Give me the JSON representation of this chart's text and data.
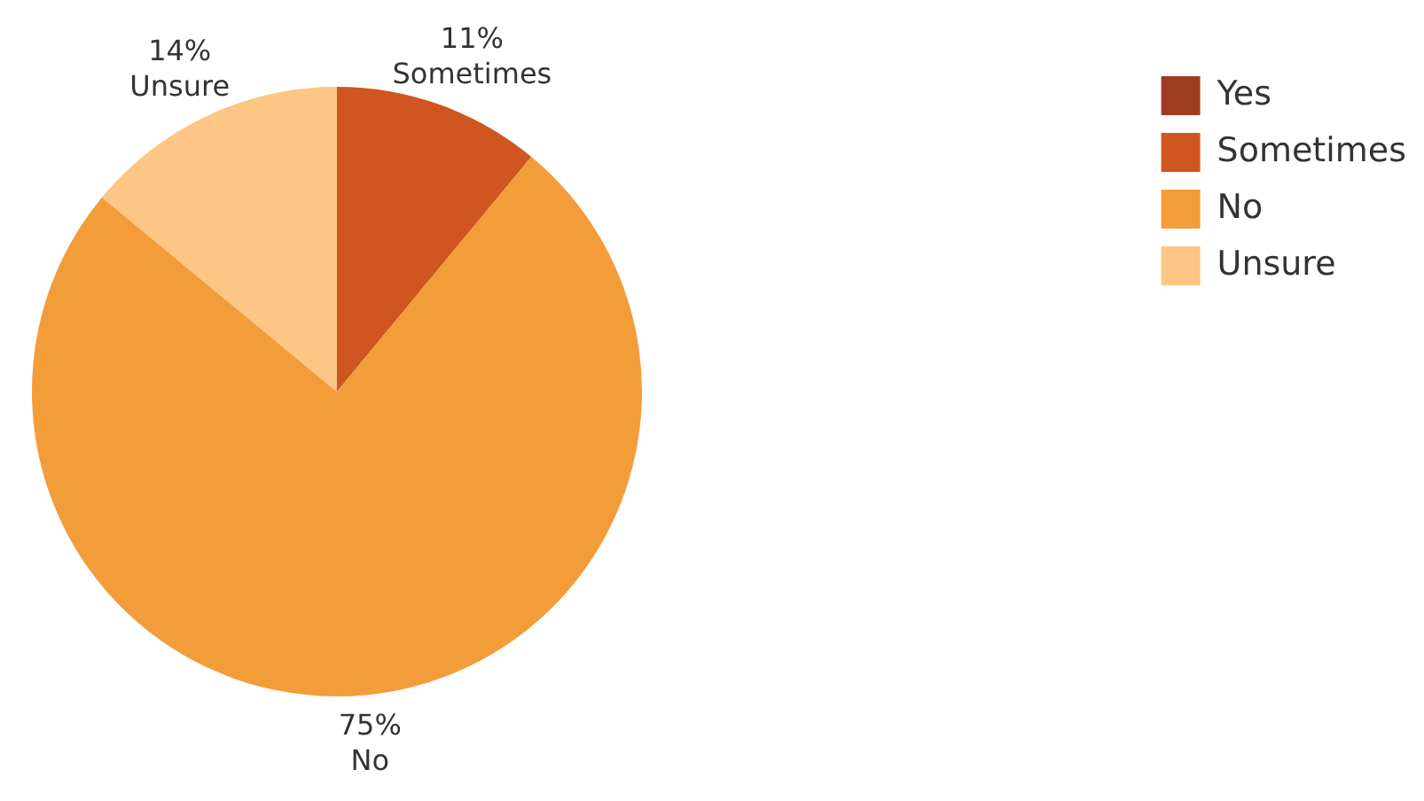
{
  "chart_data": {
    "type": "pie",
    "categories": [
      "Yes",
      "Sometimes",
      "No",
      "Unsure"
    ],
    "values": [
      0,
      11,
      75,
      14
    ],
    "colors": [
      "#9e3d22",
      "#cf5620",
      "#f39c3a",
      "#fdc684"
    ],
    "value_labels": [
      null,
      "11%",
      "75%",
      "14%"
    ],
    "legend": "top right"
  }
}
